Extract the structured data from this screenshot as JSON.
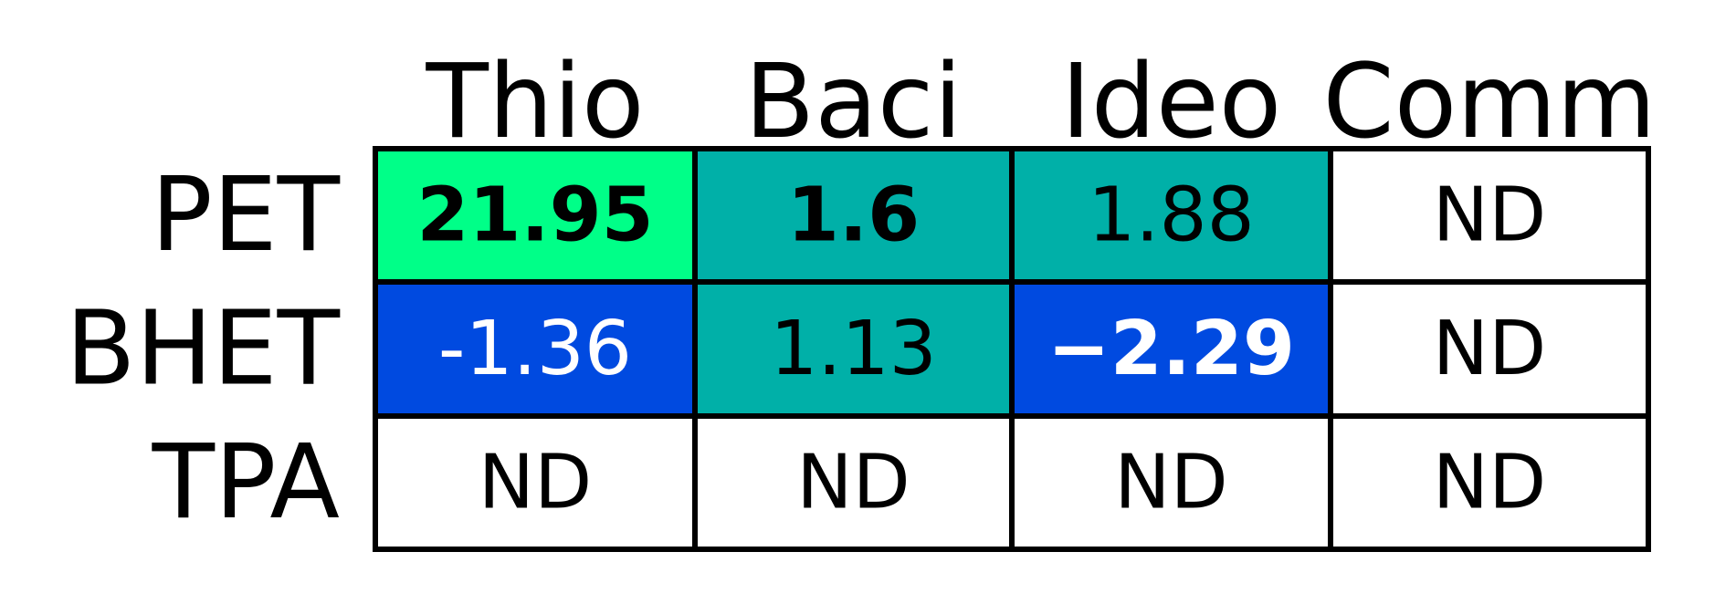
{
  "chart_data": {
    "type": "heatmap",
    "columns": [
      "Thio",
      "Baci",
      "Ideo",
      "Comm"
    ],
    "rows": [
      "PET",
      "BHET",
      "TPA"
    ],
    "cells": [
      [
        {
          "text": "21.95",
          "value": 21.95,
          "bold": true,
          "fill": "#00ff88",
          "text_color": "#000000"
        },
        {
          "text": "1.6",
          "value": 1.6,
          "bold": true,
          "fill": "#00b0a8",
          "text_color": "#000000"
        },
        {
          "text": "1.88",
          "value": 1.88,
          "bold": false,
          "fill": "#00b0a8",
          "text_color": "#000000"
        },
        {
          "text": "ND",
          "value": null,
          "bold": false,
          "fill": "#ffffff",
          "text_color": "#000000"
        }
      ],
      [
        {
          "text": "-1.36",
          "value": -1.36,
          "bold": false,
          "fill": "#004ae0",
          "text_color": "#ffffff"
        },
        {
          "text": "1.13",
          "value": 1.13,
          "bold": false,
          "fill": "#00b0a8",
          "text_color": "#000000"
        },
        {
          "text": "−2.29",
          "value": -2.29,
          "bold": true,
          "fill": "#004ae0",
          "text_color": "#ffffff"
        },
        {
          "text": "ND",
          "value": null,
          "bold": false,
          "fill": "#ffffff",
          "text_color": "#000000"
        }
      ],
      [
        {
          "text": "ND",
          "value": null,
          "bold": false,
          "fill": "#ffffff",
          "text_color": "#000000"
        },
        {
          "text": "ND",
          "value": null,
          "bold": false,
          "fill": "#ffffff",
          "text_color": "#000000"
        },
        {
          "text": "ND",
          "value": null,
          "bold": false,
          "fill": "#ffffff",
          "text_color": "#000000"
        },
        {
          "text": "ND",
          "value": null,
          "bold": false,
          "fill": "#ffffff",
          "text_color": "#000000"
        }
      ]
    ],
    "colors": {
      "grid_line": "#000000",
      "background": "#ffffff"
    }
  }
}
